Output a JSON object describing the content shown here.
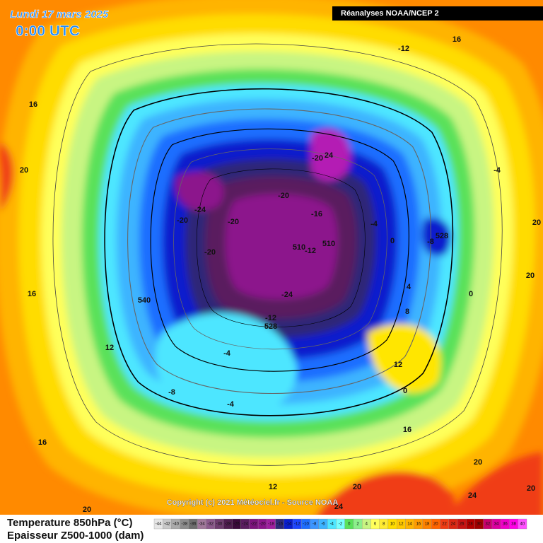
{
  "header": {
    "date": "Lundi 17 mars 2025",
    "time": "0:00 UTC",
    "source": "Réanalyses NOAA/NCEP 2"
  },
  "map": {
    "contour_labels": [
      16,
      -12,
      16,
      20,
      -20,
      24,
      -4,
      -20,
      -24,
      -16,
      -20,
      -20,
      -4,
      20,
      510,
      -12,
      510,
      528,
      -8,
      0,
      -20,
      20,
      4,
      16,
      -24,
      0,
      540,
      8,
      -12,
      528,
      12,
      -4,
      12,
      -8,
      0,
      -4,
      16,
      16,
      20,
      12,
      20,
      24,
      20,
      20,
      24
    ]
  },
  "copyright": "Copyright (c) 2021 Météociel.fr - Source NOAA",
  "legend": {
    "temperature": "Temperature 850hPa (°C)",
    "thickness": "Epaisseur Z500-1000 (dam)",
    "scale": [
      -44,
      -42,
      -40,
      -38,
      -36,
      -34,
      -32,
      -30,
      -28,
      -26,
      -24,
      -22,
      -20,
      -18,
      -16,
      -14,
      -12,
      -10,
      -8,
      -6,
      -4,
      -2,
      0,
      2,
      4,
      6,
      8,
      10,
      12,
      14,
      16,
      18,
      20,
      22,
      24,
      26,
      28,
      30,
      32,
      34,
      36,
      38,
      40
    ]
  }
}
